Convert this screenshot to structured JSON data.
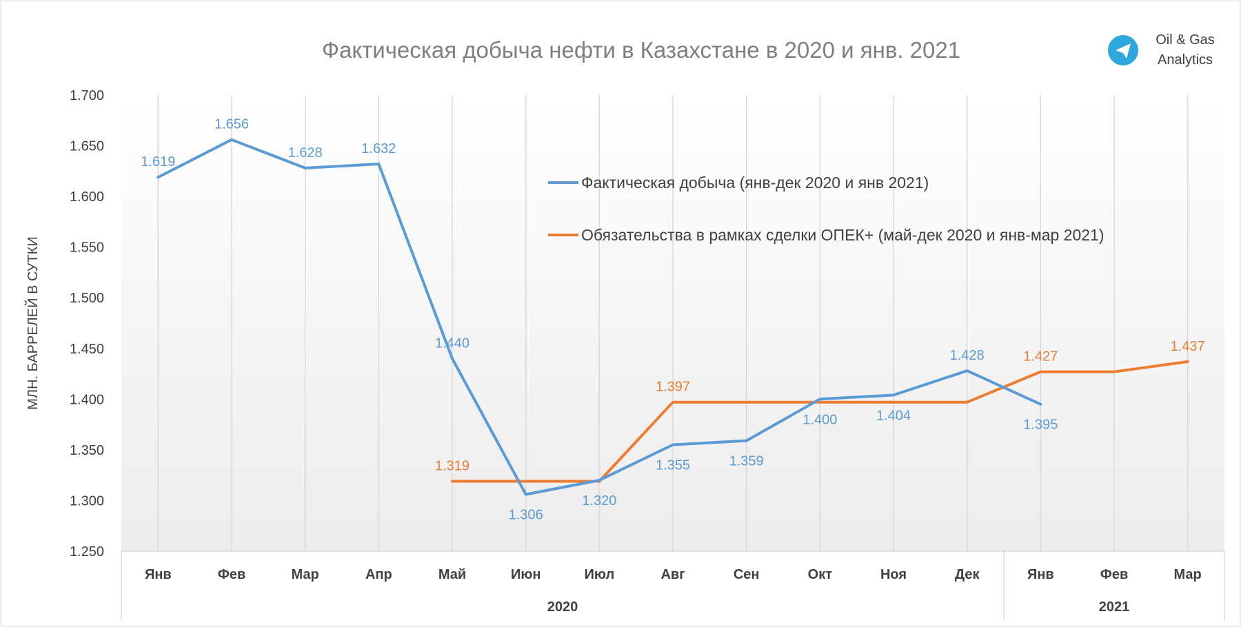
{
  "brand": {
    "line1": "Oil & Gas",
    "line2": "Analytics",
    "icon": "telegram-icon",
    "icon_color": "#2ea6de"
  },
  "colors": {
    "actual": "#5b9bd5",
    "quota": "#ed7d31",
    "axis_text": "#404040",
    "title_text": "#7f7f7f",
    "grid": "#d9d9d9"
  },
  "chart_data": {
    "type": "line",
    "title": "Фактическая добыча нефти в Казахстане в 2020 и янв. 2021",
    "ylabel": "МЛН. БАРРЕЛЕЙ В СУТКИ",
    "ylim": [
      1.25,
      1.7
    ],
    "yticks": [
      "1.250",
      "1.300",
      "1.350",
      "1.400",
      "1.450",
      "1.500",
      "1.550",
      "1.600",
      "1.650",
      "1.700"
    ],
    "categories": [
      "Янв",
      "Фев",
      "Мар",
      "Апр",
      "Май",
      "Июн",
      "Июл",
      "Авг",
      "Сен",
      "Окт",
      "Ноя",
      "Дек",
      "Янв",
      "Фев",
      "Мар"
    ],
    "groups": [
      {
        "label": "2020",
        "count": 12
      },
      {
        "label": "2021",
        "count": 3
      }
    ],
    "grid": "vertical lines at categories",
    "legend_position": "upper-right inside plot",
    "series": [
      {
        "name": "Фактическая добыча (янв-дек 2020 и янв 2021)",
        "values": [
          1.619,
          1.656,
          1.628,
          1.632,
          1.44,
          1.306,
          1.32,
          1.355,
          1.359,
          1.4,
          1.404,
          1.428,
          1.395,
          null,
          null
        ],
        "labels": [
          "1.619",
          "1.656",
          "1.628",
          "1.632",
          "1.440",
          "1.306",
          "1.320",
          "1.355",
          "1.359",
          "1.400",
          "1.404",
          "1.428",
          "1.395",
          "",
          ""
        ]
      },
      {
        "name": "Обязательства в рамках сделки ОПЕК+ (май-дек 2020 и янв-мар 2021)",
        "values": [
          null,
          null,
          null,
          null,
          1.319,
          1.319,
          1.319,
          1.397,
          1.397,
          1.397,
          1.397,
          1.397,
          1.427,
          1.427,
          1.437
        ],
        "labels": [
          "",
          "",
          "",
          "",
          "1.319",
          "",
          "",
          "1.397",
          "",
          "",
          "",
          "",
          "1.427",
          "",
          "1.437"
        ]
      }
    ]
  }
}
